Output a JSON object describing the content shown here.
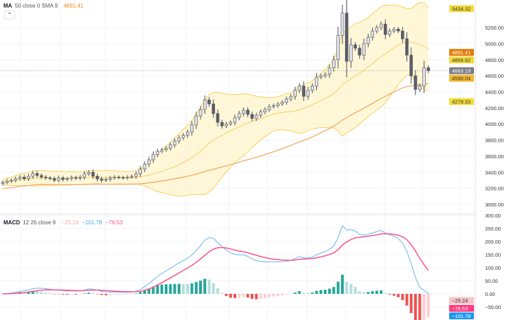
{
  "legend_price": {
    "name": "MA",
    "params": "50 close 0 SMA 9",
    "value": "4891.41"
  },
  "legend_macd": {
    "name": "MACD",
    "params": "12 26 close 9",
    "histogram": "−25.24",
    "macd": "−101.78",
    "signal": "−76.53"
  },
  "collapse_icon": "chevron-up-icon",
  "colors": {
    "up_candle": "#e0e3eb",
    "down_candle": "#5d606b",
    "candle_border": "#4a4d57",
    "band_line": "#f7cf5a",
    "band_fill": "#fff4c8",
    "ma_line": "#f0a35a",
    "macd_line": "#64b5f6",
    "signal_line": "#ff4f86",
    "hist_up_strong": "#26a69a",
    "hist_up_weak": "#b2dfdb",
    "hist_down_strong": "#ef5350",
    "hist_down_weak": "#ffcdd2"
  },
  "chart_data": [
    {
      "type": "candlestick",
      "pane": "price",
      "ylim": [
        2950,
        5480
      ],
      "yticks": [
        "5200.00",
        "5000.00",
        "4800.00",
        "4600.00",
        "4400.00",
        "4200.00",
        "4000.00",
        "3800.00",
        "3600.00",
        "3400.00",
        "3200.00",
        "3000.00"
      ],
      "close": [
        3274,
        3290,
        3300,
        3320,
        3340,
        3320,
        3350,
        3385,
        3360,
        3340,
        3330,
        3320,
        3300,
        3330,
        3310,
        3320,
        3335,
        3325,
        3340,
        3380,
        3400,
        3350,
        3317,
        3300,
        3310,
        3330,
        3340,
        3335,
        3330,
        3340,
        3350,
        3380,
        3440,
        3500,
        3556,
        3620,
        3660,
        3680,
        3700,
        3740,
        3788,
        3830,
        3860,
        3900,
        3990,
        4100,
        4180,
        4300,
        4250,
        4130,
        4020,
        3976,
        4000,
        4020,
        4080,
        4130,
        4173,
        4120,
        4070,
        4110,
        4150,
        4180,
        4216,
        4230,
        4250,
        4270,
        4310,
        4344,
        4420,
        4472,
        4344,
        4420,
        4472,
        4583,
        4600,
        4618,
        4700,
        4800,
        5100,
        5380,
        4780,
        4986,
        4943,
        4857,
        5000,
        5080,
        5157,
        5200,
        5243,
        5114,
        5157,
        5180,
        5157,
        5060,
        4857,
        4600,
        4430,
        4472,
        4700,
        4663.19
      ],
      "last_price": 4663.19,
      "price_tags": [
        {
          "label": "5434.32",
          "value": 5434.32,
          "bg": "#f2dc3a",
          "fg": "#333"
        },
        {
          "label": "4891.41",
          "value": 4891.41,
          "bg": "#e57c0a",
          "fg": "#fff"
        },
        {
          "label": "4856.82",
          "value": 4856.82,
          "bg": "#f2dc3a",
          "fg": "#333"
        },
        {
          "label": "4663.19",
          "value": 4663.19,
          "bg": "#7b7e88",
          "fg": "#fff"
        },
        {
          "label": "4590.04",
          "value": 4590.04,
          "bg": "#f5b82e",
          "fg": "#333"
        },
        {
          "label": "4279.33",
          "value": 4279.33,
          "bg": "#f2dc3a",
          "fg": "#333"
        }
      ]
    },
    {
      "type": "macd",
      "pane": "macd",
      "ylim": [
        -100,
        300
      ],
      "yticks": [
        "300.00",
        "250.00",
        "200.00",
        "150.00",
        "100.00",
        "50.00",
        "0.00",
        "−50.00"
      ],
      "value_tags": [
        {
          "label": "−25.24",
          "value": -25.24,
          "bg": "#f8c4c8",
          "fg": "#333"
        },
        {
          "label": "−76.53",
          "value": -76.53,
          "bg": "#ff3d7f",
          "fg": "#fff"
        },
        {
          "label": "−101.78",
          "value": -101.78,
          "bg": "#2196f3",
          "fg": "#fff"
        }
      ]
    }
  ]
}
